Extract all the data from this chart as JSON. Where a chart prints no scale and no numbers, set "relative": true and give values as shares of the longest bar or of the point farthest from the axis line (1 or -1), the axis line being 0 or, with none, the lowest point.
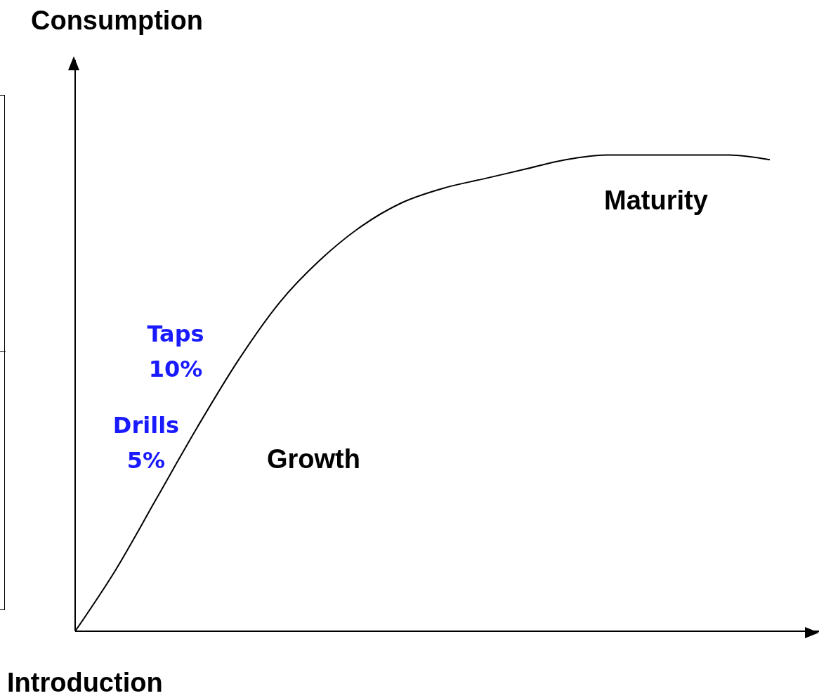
{
  "chart_data": {
    "type": "line",
    "relative": true,
    "ylabel": "Consumption",
    "categories": [
      null,
      null,
      null,
      null,
      null,
      null,
      null,
      null,
      null,
      null,
      null,
      null,
      null,
      null,
      null,
      null,
      null,
      null
    ],
    "series": [
      {
        "color": "#000000",
        "values": [
          0,
          0.13,
          0.28,
          0.43,
          0.57,
          0.69,
          0.78,
          0.85,
          0.9,
          0.93,
          0.95,
          0.97,
          0.99,
          1.0,
          1.0,
          1.0,
          1.0,
          0.99
        ]
      }
    ],
    "annotations": [
      "Maturity",
      "Taps 10%",
      "Drills 5%",
      "Growth",
      "Introduction"
    ],
    "marker": "none",
    "line_style": "solid",
    "grid": false,
    "legend": false
  }
}
